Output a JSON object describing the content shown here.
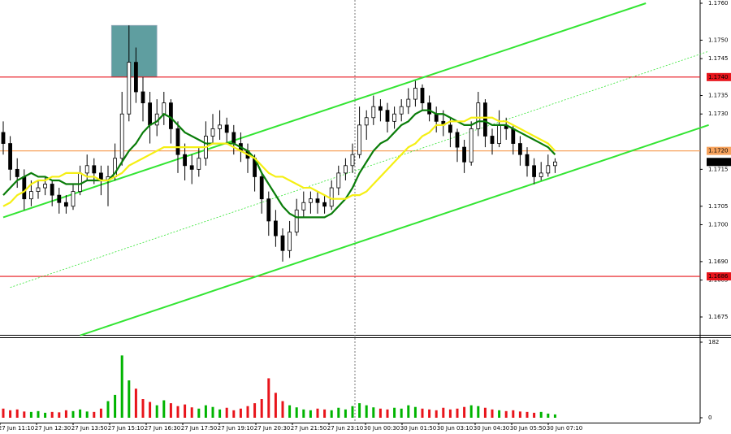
{
  "chart_data": {
    "type": "candlestick",
    "ylim": [
      1.1675,
      1.176
    ],
    "yticks": [
      {
        "value": 1.176,
        "label": "1.1760"
      },
      {
        "value": 1.175,
        "label": "1.1750"
      },
      {
        "value": 1.1745,
        "label": "1.1745"
      },
      {
        "value": 1.1735,
        "label": "1.1735"
      },
      {
        "value": 1.173,
        "label": "1.1730"
      },
      {
        "value": 1.1715,
        "label": "1.1715"
      },
      {
        "value": 1.1705,
        "label": "1.1705"
      },
      {
        "value": 1.17,
        "label": "1.1700"
      },
      {
        "value": 1.169,
        "label": "1.1690"
      },
      {
        "value": 1.1685,
        "label": "1.1685"
      },
      {
        "value": 1.1675,
        "label": "1.1675"
      }
    ],
    "levels": [
      {
        "value": 1.174,
        "label": "1.1740",
        "color": "#e8141b"
      },
      {
        "value": 1.172,
        "label": "1.1720",
        "color": "#f7a25c"
      },
      {
        "value": 1.1686,
        "label": "1.1686",
        "color": "#e8141b"
      }
    ],
    "current_price": {
      "value": 1.1717,
      "label": "1.1717"
    },
    "xticks": [
      "27 Jun 11:10",
      "27 Jun 12:30",
      "27 Jun 13:50",
      "27 Jun 15:10",
      "27 Jun 16:30",
      "27 Jun 17:50",
      "27 Jun 19:10",
      "27 Jun 20:30",
      "27 Jun 21:50",
      "27 Jun 23:10",
      "30 Jun 00:30",
      "30 Jun 01:50",
      "30 Jun 03:10",
      "30 Jun 04:30",
      "30 Jun 05:50",
      "30 Jun 07:10"
    ],
    "up_color": "#00b400",
    "down_color": "#e8141b",
    "candles": [
      [
        1.1725,
        1.1728,
        1.1719,
        1.1722
      ],
      [
        1.1722,
        1.1724,
        1.1712,
        1.1715
      ],
      [
        1.1715,
        1.1718,
        1.171,
        1.1713
      ],
      [
        1.1713,
        1.1715,
        1.1704,
        1.1707
      ],
      [
        1.1707,
        1.1712,
        1.1705,
        1.1709
      ],
      [
        1.1709,
        1.1712,
        1.1707,
        1.171
      ],
      [
        1.171,
        1.1713,
        1.1708,
        1.1711
      ],
      [
        1.1711,
        1.1712,
        1.1705,
        1.1708
      ],
      [
        1.1708,
        1.171,
        1.1703,
        1.1706
      ],
      [
        1.1706,
        1.1708,
        1.1703,
        1.1705
      ],
      [
        1.1705,
        1.1711,
        1.1704,
        1.1709
      ],
      [
        1.1709,
        1.1716,
        1.1708,
        1.1714
      ],
      [
        1.1714,
        1.1719,
        1.1712,
        1.1716
      ],
      [
        1.1716,
        1.1718,
        1.1711,
        1.1714
      ],
      [
        1.1714,
        1.1716,
        1.1708,
        1.1712
      ],
      [
        1.1712,
        1.1716,
        1.1705,
        1.1713
      ],
      [
        1.1713,
        1.1722,
        1.1712,
        1.1718
      ],
      [
        1.1718,
        1.1736,
        1.1716,
        1.173
      ],
      [
        1.173,
        1.1754,
        1.1728,
        1.1744
      ],
      [
        1.1744,
        1.1748,
        1.1733,
        1.1736
      ],
      [
        1.1736,
        1.174,
        1.1728,
        1.1733
      ],
      [
        1.1733,
        1.1736,
        1.1722,
        1.1727
      ],
      [
        1.1727,
        1.1734,
        1.1724,
        1.173
      ],
      [
        1.173,
        1.1736,
        1.1727,
        1.1733
      ],
      [
        1.1733,
        1.1734,
        1.1722,
        1.1726
      ],
      [
        1.1726,
        1.1728,
        1.1714,
        1.1719
      ],
      [
        1.1719,
        1.1722,
        1.1712,
        1.1716
      ],
      [
        1.1716,
        1.1719,
        1.1711,
        1.1715
      ],
      [
        1.1715,
        1.1721,
        1.1713,
        1.1718
      ],
      [
        1.1718,
        1.1728,
        1.1716,
        1.1724
      ],
      [
        1.1724,
        1.173,
        1.1722,
        1.1726
      ],
      [
        1.1726,
        1.1731,
        1.1723,
        1.1727
      ],
      [
        1.1727,
        1.1729,
        1.1722,
        1.1725
      ],
      [
        1.1725,
        1.1727,
        1.1719,
        1.1722
      ],
      [
        1.1722,
        1.1725,
        1.1717,
        1.172
      ],
      [
        1.172,
        1.1722,
        1.1714,
        1.1718
      ],
      [
        1.1718,
        1.1719,
        1.1709,
        1.1713
      ],
      [
        1.1713,
        1.1714,
        1.1703,
        1.1707
      ],
      [
        1.1707,
        1.1709,
        1.1697,
        1.1701
      ],
      [
        1.1701,
        1.1704,
        1.1694,
        1.1697
      ],
      [
        1.1697,
        1.1699,
        1.169,
        1.1693
      ],
      [
        1.1693,
        1.1701,
        1.1691,
        1.1698
      ],
      [
        1.1698,
        1.1707,
        1.1697,
        1.1704
      ],
      [
        1.1704,
        1.1709,
        1.1702,
        1.1706
      ],
      [
        1.1706,
        1.1709,
        1.1703,
        1.1707
      ],
      [
        1.1707,
        1.1709,
        1.1703,
        1.1706
      ],
      [
        1.1706,
        1.1708,
        1.1703,
        1.1705
      ],
      [
        1.1705,
        1.1712,
        1.1704,
        1.171
      ],
      [
        1.171,
        1.1716,
        1.1708,
        1.1714
      ],
      [
        1.1714,
        1.1718,
        1.1712,
        1.1716
      ],
      [
        1.1716,
        1.1722,
        1.1714,
        1.1719
      ],
      [
        1.1719,
        1.1732,
        1.1718,
        1.1727
      ],
      [
        1.1727,
        1.1731,
        1.1723,
        1.1729
      ],
      [
        1.1729,
        1.1735,
        1.1727,
        1.1732
      ],
      [
        1.1732,
        1.1734,
        1.1728,
        1.1731
      ],
      [
        1.1731,
        1.1733,
        1.1725,
        1.1728
      ],
      [
        1.1728,
        1.1732,
        1.1726,
        1.173
      ],
      [
        1.173,
        1.1734,
        1.1728,
        1.1732
      ],
      [
        1.1732,
        1.1737,
        1.173,
        1.1734
      ],
      [
        1.1734,
        1.1739,
        1.1732,
        1.1737
      ],
      [
        1.1737,
        1.1738,
        1.1731,
        1.1733
      ],
      [
        1.1733,
        1.1735,
        1.1728,
        1.173
      ],
      [
        1.173,
        1.1732,
        1.1725,
        1.1728
      ],
      [
        1.1728,
        1.1731,
        1.1724,
        1.1727
      ],
      [
        1.1727,
        1.1729,
        1.1721,
        1.1725
      ],
      [
        1.1725,
        1.1726,
        1.1717,
        1.1721
      ],
      [
        1.1721,
        1.1723,
        1.1714,
        1.1717
      ],
      [
        1.1717,
        1.1728,
        1.1716,
        1.1726
      ],
      [
        1.1726,
        1.1736,
        1.1724,
        1.1733
      ],
      [
        1.1733,
        1.1734,
        1.1721,
        1.1724
      ],
      [
        1.1724,
        1.1726,
        1.1719,
        1.1722
      ],
      [
        1.1722,
        1.1731,
        1.1721,
        1.1727
      ],
      [
        1.1727,
        1.1729,
        1.1723,
        1.1726
      ],
      [
        1.1726,
        1.1727,
        1.1719,
        1.1722
      ],
      [
        1.1722,
        1.1724,
        1.1716,
        1.1719
      ],
      [
        1.1719,
        1.1721,
        1.1713,
        1.1716
      ],
      [
        1.1716,
        1.1718,
        1.1711,
        1.1713
      ],
      [
        1.1713,
        1.1717,
        1.1712,
        1.1714
      ],
      [
        1.1714,
        1.1719,
        1.1713,
        1.1716
      ],
      [
        1.1716,
        1.1718,
        1.1714,
        1.1717
      ]
    ],
    "ma": [
      {
        "color": "#0a7d0a",
        "values": [
          1.1708,
          1.171,
          1.1712,
          1.1713,
          1.1714,
          1.1713,
          1.1713,
          1.1712,
          1.1712,
          1.1711,
          1.1711,
          1.1711,
          1.1712,
          1.1712,
          1.1712,
          1.1712,
          1.1714,
          1.1717,
          1.172,
          1.1722,
          1.1725,
          1.1727,
          1.1728,
          1.173,
          1.1729,
          1.1727,
          1.1725,
          1.1724,
          1.1723,
          1.1722,
          1.1722,
          1.1722,
          1.1722,
          1.1722,
          1.1721,
          1.172,
          1.1718,
          1.1714,
          1.1711,
          1.1708,
          1.1705,
          1.1703,
          1.1702,
          1.1702,
          1.1702,
          1.1702,
          1.1702,
          1.1703,
          1.1705,
          1.1707,
          1.171,
          1.1714,
          1.1717,
          1.172,
          1.1722,
          1.1723,
          1.1725,
          1.1727,
          1.1728,
          1.173,
          1.1731,
          1.1731,
          1.173,
          1.173,
          1.1729,
          1.1728,
          1.1727,
          1.1727,
          1.1728,
          1.1728,
          1.1727,
          1.1727,
          1.1727,
          1.1726,
          1.1725,
          1.1724,
          1.1723,
          1.1722,
          1.1721,
          1.1719
        ]
      },
      {
        "color": "#f5ef14",
        "values": [
          1.1705,
          1.1706,
          1.1708,
          1.1709,
          1.1711,
          1.1712,
          1.1712,
          1.1713,
          1.1713,
          1.1714,
          1.1714,
          1.1714,
          1.1713,
          1.1713,
          1.1712,
          1.1712,
          1.1713,
          1.1714,
          1.1716,
          1.1717,
          1.1718,
          1.1719,
          1.172,
          1.1721,
          1.1721,
          1.1721,
          1.1721,
          1.1721,
          1.1721,
          1.1721,
          1.1722,
          1.1722,
          1.1722,
          1.1721,
          1.172,
          1.1719,
          1.1718,
          1.1716,
          1.1714,
          1.1713,
          1.1713,
          1.1712,
          1.1711,
          1.171,
          1.171,
          1.1709,
          1.1708,
          1.1707,
          1.1707,
          1.1707,
          1.1708,
          1.1708,
          1.1709,
          1.1711,
          1.1713,
          1.1715,
          1.1717,
          1.1719,
          1.1721,
          1.1722,
          1.1724,
          1.1725,
          1.1727,
          1.1727,
          1.1728,
          1.1728,
          1.1728,
          1.1729,
          1.1729,
          1.1729,
          1.1729,
          1.1728,
          1.1728,
          1.1727,
          1.1726,
          1.1725,
          1.1724,
          1.1723,
          1.1722,
          1.172
        ]
      }
    ],
    "trendlines": [
      {
        "color": "#33e533",
        "dashed": false,
        "from": [
          0,
          1.1702
        ],
        "to": [
          92,
          1.176
        ]
      },
      {
        "color": "#33e533",
        "dashed": false,
        "from": [
          11,
          1.167
        ],
        "to": [
          101,
          1.1727
        ]
      },
      {
        "color": "#33e533",
        "dashed": true,
        "from": [
          1,
          1.1683
        ],
        "to": [
          101,
          1.1747
        ]
      }
    ],
    "zone": {
      "color": "#5f9ea0",
      "from": 15.5,
      "to": 22,
      "top": 1.1754,
      "bottom": 1.174
    },
    "volume": {
      "ylim": [
        0,
        182
      ],
      "yticks": [
        0,
        182
      ],
      "values": [
        22,
        18,
        20,
        15,
        14,
        16,
        12,
        14,
        13,
        18,
        16,
        20,
        15,
        14,
        22,
        40,
        55,
        150,
        90,
        70,
        45,
        38,
        30,
        42,
        35,
        28,
        32,
        25,
        22,
        30,
        26,
        20,
        24,
        18,
        22,
        28,
        35,
        45,
        95,
        60,
        40,
        30,
        25,
        20,
        18,
        22,
        20,
        18,
        24,
        20,
        28,
        35,
        30,
        25,
        22,
        20,
        24,
        22,
        30,
        26,
        22,
        20,
        18,
        24,
        20,
        22,
        26,
        30,
        28,
        24,
        20,
        18,
        16,
        18,
        15,
        14,
        12,
        14,
        10,
        8
      ]
    }
  }
}
